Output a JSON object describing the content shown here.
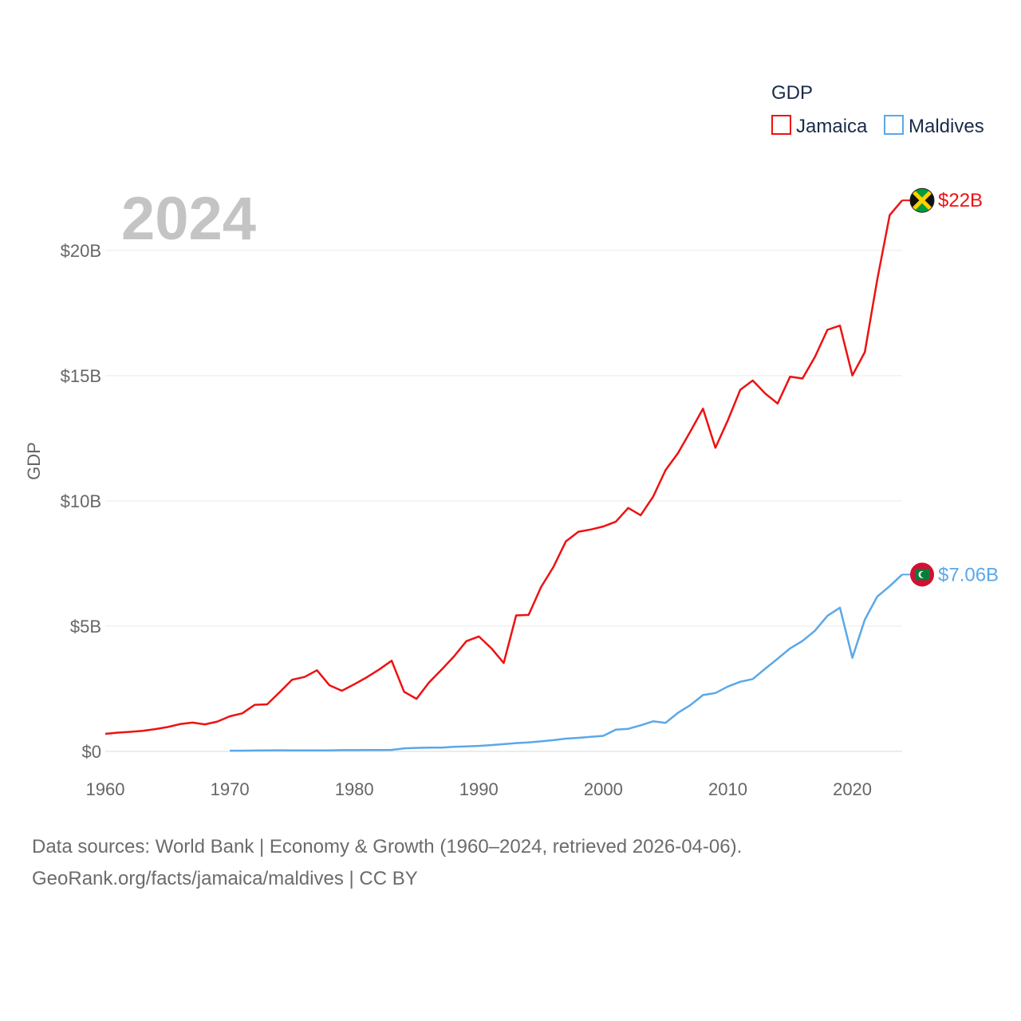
{
  "chart_data": {
    "type": "line",
    "year_label": "2024",
    "ylabel": "GDP",
    "ylim": [
      0,
      22
    ],
    "yticks": [
      {
        "value": 0,
        "label": "$0"
      },
      {
        "value": 5,
        "label": "$5B"
      },
      {
        "value": 10,
        "label": "$10B"
      },
      {
        "value": 15,
        "label": "$15B"
      },
      {
        "value": 20,
        "label": "$20B"
      }
    ],
    "xlim": [
      1960,
      2024
    ],
    "xticks": [
      {
        "value": 1960,
        "label": "1960"
      },
      {
        "value": 1970,
        "label": "1970"
      },
      {
        "value": 1980,
        "label": "1980"
      },
      {
        "value": 1990,
        "label": "1990"
      },
      {
        "value": 2000,
        "label": "2000"
      },
      {
        "value": 2010,
        "label": "2010"
      },
      {
        "value": 2020,
        "label": "2020"
      }
    ],
    "legend": {
      "title": "GDP",
      "position": "top-right"
    },
    "series": [
      {
        "name": "Jamaica",
        "color": "#ee1111",
        "end_label": "$22B",
        "flag": "jamaica-flag",
        "x": [
          1960,
          1961,
          1962,
          1963,
          1964,
          1965,
          1966,
          1967,
          1968,
          1969,
          1970,
          1971,
          1972,
          1973,
          1974,
          1975,
          1976,
          1977,
          1978,
          1979,
          1980,
          1981,
          1982,
          1983,
          1984,
          1985,
          1986,
          1987,
          1988,
          1989,
          1990,
          1991,
          1992,
          1993,
          1994,
          1995,
          1996,
          1997,
          1998,
          1999,
          2000,
          2001,
          2002,
          2003,
          2004,
          2005,
          2006,
          2007,
          2008,
          2009,
          2010,
          2011,
          2012,
          2013,
          2014,
          2015,
          2016,
          2017,
          2018,
          2019,
          2020,
          2021,
          2022,
          2023,
          2024
        ],
        "values": [
          0.7,
          0.75,
          0.78,
          0.82,
          0.89,
          0.97,
          1.09,
          1.15,
          1.08,
          1.19,
          1.4,
          1.52,
          1.86,
          1.88,
          2.36,
          2.86,
          2.97,
          3.24,
          2.64,
          2.42,
          2.68,
          2.96,
          3.27,
          3.62,
          2.38,
          2.1,
          2.75,
          3.26,
          3.79,
          4.4,
          4.59,
          4.12,
          3.53,
          5.43,
          5.45,
          6.56,
          7.37,
          8.39,
          8.77,
          8.86,
          8.98,
          9.17,
          9.72,
          9.43,
          10.17,
          11.23,
          11.91,
          12.78,
          13.68,
          12.12,
          13.22,
          14.44,
          14.81,
          14.29,
          13.89,
          14.96,
          14.89,
          15.75,
          16.83,
          17.0,
          15.01,
          15.94,
          18.84,
          21.41,
          22.0
        ]
      },
      {
        "name": "Maldives",
        "color": "#5ba8e8",
        "end_label": "$7.06B",
        "flag": "maldives-flag",
        "x": [
          1970,
          1971,
          1972,
          1973,
          1974,
          1975,
          1976,
          1977,
          1978,
          1979,
          1980,
          1981,
          1982,
          1983,
          1984,
          1985,
          1986,
          1987,
          1988,
          1989,
          1990,
          1991,
          1992,
          1993,
          1994,
          1995,
          1996,
          1997,
          1998,
          1999,
          2000,
          2001,
          2002,
          2003,
          2004,
          2005,
          2006,
          2007,
          2008,
          2009,
          2010,
          2011,
          2012,
          2013,
          2014,
          2015,
          2016,
          2017,
          2018,
          2019,
          2020,
          2021,
          2022,
          2023,
          2024
        ],
        "values": [
          0.03,
          0.03,
          0.035,
          0.04,
          0.045,
          0.04,
          0.04,
          0.04,
          0.04,
          0.05,
          0.05,
          0.055,
          0.055,
          0.06,
          0.12,
          0.14,
          0.15,
          0.15,
          0.18,
          0.2,
          0.22,
          0.25,
          0.29,
          0.33,
          0.36,
          0.4,
          0.45,
          0.51,
          0.54,
          0.58,
          0.62,
          0.87,
          0.9,
          1.04,
          1.2,
          1.14,
          1.54,
          1.85,
          2.25,
          2.33,
          2.59,
          2.78,
          2.89,
          3.3,
          3.7,
          4.11,
          4.41,
          4.82,
          5.41,
          5.74,
          3.74,
          5.26,
          6.18,
          6.6,
          7.06
        ]
      }
    ]
  },
  "source": {
    "line1": "Data sources: World Bank | Economy & Growth (1960–2024, retrieved 2026-04-06).",
    "line2": "GeoRank.org/facts/jamaica/maldives | CC BY"
  }
}
